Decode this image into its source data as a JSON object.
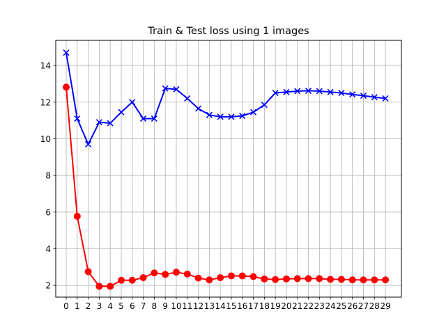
{
  "chart_data": {
    "type": "line",
    "title": "Train & Test loss using 1 images",
    "xlabel": "",
    "ylabel": "",
    "x": [
      0,
      1,
      2,
      3,
      4,
      5,
      6,
      7,
      8,
      9,
      10,
      11,
      12,
      13,
      14,
      15,
      16,
      17,
      18,
      19,
      20,
      21,
      22,
      23,
      24,
      25,
      26,
      27,
      28,
      29
    ],
    "xlim": [
      -0.95,
      30.45
    ],
    "ylim": [
      1.36,
      15.37
    ],
    "yticks": [
      2,
      4,
      6,
      8,
      10,
      12,
      14
    ],
    "grid": true,
    "series": [
      {
        "color": "#0000ff",
        "marker": "x",
        "values": [
          14.7,
          11.1,
          9.7,
          10.9,
          10.85,
          11.45,
          12.0,
          11.1,
          11.1,
          12.75,
          12.7,
          12.2,
          11.65,
          11.3,
          11.2,
          11.2,
          11.25,
          11.45,
          11.85,
          12.5,
          12.55,
          12.6,
          12.62,
          12.6,
          12.55,
          12.5,
          12.42,
          12.35,
          12.27,
          12.2
        ]
      },
      {
        "color": "#ff0000",
        "marker": "o",
        "values": [
          12.82,
          5.77,
          2.75,
          1.95,
          1.95,
          2.28,
          2.28,
          2.42,
          2.68,
          2.6,
          2.72,
          2.62,
          2.4,
          2.3,
          2.42,
          2.52,
          2.52,
          2.48,
          2.35,
          2.32,
          2.35,
          2.37,
          2.37,
          2.37,
          2.33,
          2.33,
          2.3,
          2.3,
          2.3,
          2.3
        ]
      }
    ]
  }
}
